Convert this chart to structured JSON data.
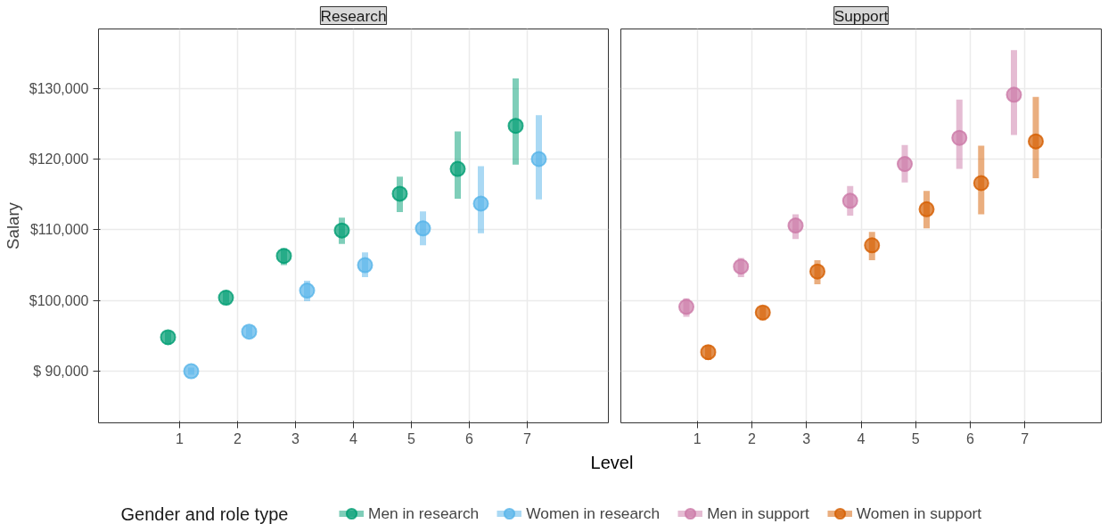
{
  "chart_data": [
    {
      "type": "scatter",
      "title": "Research",
      "xlabel": "Level",
      "ylabel": "Salary",
      "legend_title": "Gender and role type",
      "legend": "bottom",
      "grid": true,
      "marker": "circle",
      "xlim": [
        -0.4,
        8.4
      ],
      "xticks": [
        1,
        2,
        3,
        4,
        5,
        6,
        7
      ],
      "ylim": [
        82700,
        138400
      ],
      "yticks": [
        {
          "value": 90000,
          "label": "$ 90,000"
        },
        {
          "value": 100000,
          "label": "$100,000"
        },
        {
          "value": 110000,
          "label": "$110,000"
        },
        {
          "value": 120000,
          "label": "$120,000"
        },
        {
          "value": 130000,
          "label": "$130,000"
        }
      ],
      "series": [
        {
          "name": "Men in research",
          "color": "#009e73",
          "x": [
            0.8,
            1.8,
            2.8,
            3.8,
            4.8,
            5.8,
            6.8
          ],
          "values": [
            94800,
            100400,
            106300,
            109900,
            115100,
            118600,
            124700
          ],
          "errors": [
            [
              93800,
              95700
            ],
            [
              99500,
              101400
            ],
            [
              105000,
              107400
            ],
            [
              108000,
              111700
            ],
            [
              112500,
              117500
            ],
            [
              114400,
              123900
            ],
            [
              119200,
              131400
            ]
          ]
        },
        {
          "name": "Women in research",
          "color": "#56b4e9",
          "x": [
            1.2,
            2.2,
            3.2,
            4.2,
            5.2,
            6.2,
            7.2
          ],
          "values": [
            90000,
            95600,
            101400,
            105000,
            110200,
            113700,
            120000
          ],
          "errors": [
            [
              89500,
              90500
            ],
            [
              94800,
              96400
            ],
            [
              99900,
              102800
            ],
            [
              103300,
              106800
            ],
            [
              107800,
              112600
            ],
            [
              109500,
              119000
            ],
            [
              114300,
              126200
            ]
          ]
        }
      ]
    },
    {
      "type": "scatter",
      "title": "Support",
      "legend": "bottom",
      "grid": true,
      "marker": "circle",
      "tick_labels": "x",
      "xlim": [
        -0.4,
        8.4
      ],
      "xticks": [
        1,
        2,
        3,
        4,
        5,
        6,
        7
      ],
      "ylim": [
        82700,
        138400
      ],
      "yticks": [
        90000,
        100000,
        110000,
        120000,
        130000
      ],
      "series": [
        {
          "name": "Men in support",
          "color": "#cc79a7",
          "x": [
            0.8,
            1.8,
            2.8,
            3.8,
            4.8,
            5.8,
            6.8
          ],
          "values": [
            99100,
            104800,
            110600,
            114100,
            119300,
            123000,
            129100
          ],
          "errors": [
            [
              97700,
              100300
            ],
            [
              103300,
              106000
            ],
            [
              108700,
              112200
            ],
            [
              112000,
              116200
            ],
            [
              116700,
              122000
            ],
            [
              118600,
              128400
            ],
            [
              123400,
              135400
            ]
          ]
        },
        {
          "name": "Women in support",
          "color": "#d55e00",
          "x": [
            1.2,
            2.2,
            3.2,
            4.2,
            5.2,
            6.2,
            7.2
          ],
          "values": [
            92700,
            98300,
            104100,
            107800,
            112900,
            116600,
            122500
          ],
          "errors": [
            [
              91600,
              93700
            ],
            [
              97200,
              99200
            ],
            [
              102300,
              105700
            ],
            [
              105700,
              109700
            ],
            [
              110200,
              115500
            ],
            [
              112200,
              121900
            ],
            [
              117300,
              128800
            ]
          ]
        }
      ]
    }
  ]
}
